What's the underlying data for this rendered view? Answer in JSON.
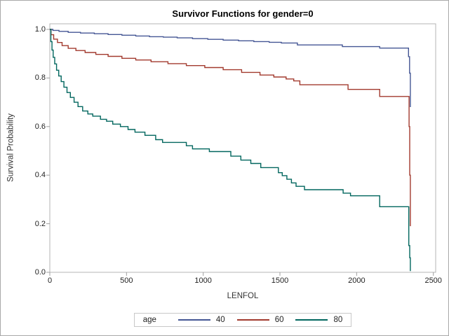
{
  "figure": {
    "background": "#ffffff",
    "border_color": "#a9a9a9",
    "frame_color": "#b4b4b4",
    "tick_color": "#a0a0a0",
    "text_color": "#1f1f1f"
  },
  "chart_data": {
    "type": "line",
    "step": "after",
    "title": "Survivor Functions for gender=0",
    "xlabel": "LENFOL",
    "ylabel": "Survival Probability",
    "xlim": [
      0,
      2515
    ],
    "ylim": [
      0.0,
      1.0
    ],
    "x_ticks": [
      0,
      500,
      1000,
      1500,
      2000,
      2500
    ],
    "y_ticks": [
      1.0,
      0.8,
      0.6,
      0.4,
      0.2,
      0.0
    ],
    "grid": false,
    "legend": {
      "title": "age",
      "position": "bottom"
    },
    "series": [
      {
        "name": "40",
        "color": "#445694",
        "points": [
          [
            0,
            1.0
          ],
          [
            20,
            0.996
          ],
          [
            60,
            0.992
          ],
          [
            120,
            0.988
          ],
          [
            200,
            0.985
          ],
          [
            290,
            0.982
          ],
          [
            380,
            0.979
          ],
          [
            470,
            0.976
          ],
          [
            560,
            0.973
          ],
          [
            650,
            0.97
          ],
          [
            740,
            0.968
          ],
          [
            830,
            0.965
          ],
          [
            930,
            0.962
          ],
          [
            1030,
            0.959
          ],
          [
            1130,
            0.956
          ],
          [
            1230,
            0.953
          ],
          [
            1330,
            0.95
          ],
          [
            1430,
            0.947
          ],
          [
            1509,
            0.944
          ],
          [
            1614,
            0.936
          ],
          [
            1907,
            0.929
          ],
          [
            2150,
            0.923
          ],
          [
            2338,
            0.888
          ],
          [
            2345,
            0.82
          ],
          [
            2350,
            0.68
          ]
        ]
      },
      {
        "name": "60",
        "color": "#A23A2E",
        "points": [
          [
            0,
            1.0
          ],
          [
            8,
            0.978
          ],
          [
            25,
            0.96
          ],
          [
            50,
            0.946
          ],
          [
            80,
            0.933
          ],
          [
            120,
            0.922
          ],
          [
            170,
            0.913
          ],
          [
            230,
            0.905
          ],
          [
            300,
            0.897
          ],
          [
            380,
            0.889
          ],
          [
            470,
            0.881
          ],
          [
            560,
            0.874
          ],
          [
            660,
            0.867
          ],
          [
            770,
            0.859
          ],
          [
            890,
            0.851
          ],
          [
            1010,
            0.843
          ],
          [
            1130,
            0.834
          ],
          [
            1250,
            0.823
          ],
          [
            1370,
            0.812
          ],
          [
            1460,
            0.804
          ],
          [
            1540,
            0.796
          ],
          [
            1590,
            0.788
          ],
          [
            1630,
            0.772
          ],
          [
            1944,
            0.753
          ],
          [
            2150,
            0.724
          ],
          [
            2342,
            0.6
          ],
          [
            2346,
            0.4
          ],
          [
            2350,
            0.19
          ]
        ]
      },
      {
        "name": "80",
        "color": "#01665E",
        "points": [
          [
            0,
            1.0
          ],
          [
            7,
            0.95
          ],
          [
            14,
            0.915
          ],
          [
            22,
            0.885
          ],
          [
            32,
            0.858
          ],
          [
            44,
            0.832
          ],
          [
            58,
            0.808
          ],
          [
            74,
            0.785
          ],
          [
            92,
            0.762
          ],
          [
            112,
            0.74
          ],
          [
            134,
            0.72
          ],
          [
            158,
            0.7
          ],
          [
            184,
            0.682
          ],
          [
            214,
            0.664
          ],
          [
            248,
            0.652
          ],
          [
            280,
            0.643
          ],
          [
            330,
            0.63
          ],
          [
            370,
            0.622
          ],
          [
            410,
            0.61
          ],
          [
            460,
            0.6
          ],
          [
            510,
            0.588
          ],
          [
            555,
            0.577
          ],
          [
            620,
            0.564
          ],
          [
            690,
            0.546
          ],
          [
            735,
            0.535
          ],
          [
            890,
            0.521
          ],
          [
            930,
            0.508
          ],
          [
            1040,
            0.497
          ],
          [
            1180,
            0.478
          ],
          [
            1245,
            0.462
          ],
          [
            1310,
            0.448
          ],
          [
            1375,
            0.431
          ],
          [
            1490,
            0.41
          ],
          [
            1515,
            0.398
          ],
          [
            1545,
            0.383
          ],
          [
            1575,
            0.368
          ],
          [
            1605,
            0.354
          ],
          [
            1660,
            0.34
          ],
          [
            1912,
            0.326
          ],
          [
            1960,
            0.315
          ],
          [
            2150,
            0.27
          ],
          [
            2340,
            0.11
          ],
          [
            2346,
            0.06
          ],
          [
            2350,
            0.005
          ]
        ]
      }
    ]
  },
  "legend": {
    "title": "age",
    "entries": [
      {
        "label": "40",
        "color": "#445694"
      },
      {
        "label": "60",
        "color": "#A23A2E"
      },
      {
        "label": "80",
        "color": "#01665E"
      }
    ]
  }
}
